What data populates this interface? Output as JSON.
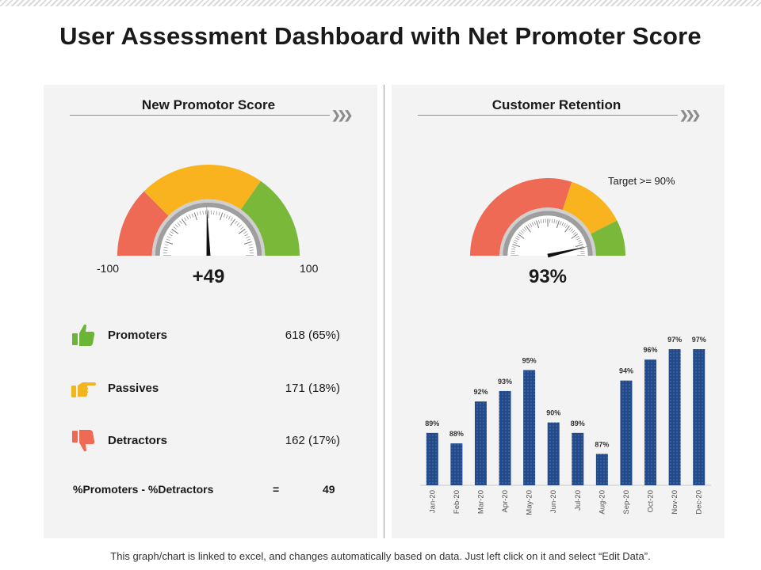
{
  "title": "User Assessment Dashboard with Net Promoter Score",
  "footnote": "This graph/chart is linked to excel, and changes automatically based on data. Just left click on it and select “Edit Data”.",
  "nps": {
    "panel_title": "New Promotor Score",
    "gauge_min_label": "-100",
    "gauge_max_label": "100",
    "score_label": "+49",
    "score": 49,
    "rows": [
      {
        "label": "Promoters",
        "value": "618 (65%)",
        "icon": "thumbs-up-icon",
        "color": "#6ab535"
      },
      {
        "label": "Passives",
        "value": "171 (18%)",
        "icon": "pointing-hand-icon",
        "color": "#f3b51c"
      },
      {
        "label": "Detractors",
        "value": "162 (17%)",
        "icon": "thumbs-down-icon",
        "color": "#ee6a55"
      }
    ],
    "formula_label": "%Promoters - %Detractors",
    "formula_equals": "=",
    "formula_result": "49"
  },
  "retention": {
    "panel_title": "Customer Retention",
    "target_label": "Target >= 90%",
    "value_label": "93%",
    "value": 93
  },
  "colors": {
    "red": "#ee6a55",
    "amber": "#f8b31e",
    "green": "#7ab839",
    "bar": "#234b8c"
  },
  "chart_data": [
    {
      "type": "gauge",
      "title": "New Promotor Score",
      "range": [
        -100,
        100
      ],
      "value": 49,
      "value_label": "+49"
    },
    {
      "type": "gauge",
      "title": "Customer Retention",
      "value": 93,
      "value_label": "93%",
      "annotation": "Target >= 90%"
    },
    {
      "type": "bar",
      "categories": [
        "Jan-20",
        "Feb-20",
        "Mar-20",
        "Apr-20",
        "May-20",
        "Jun-20",
        "Jul-20",
        "Aug-20",
        "Sep-20",
        "Oct-20",
        "Nov-20",
        "Dec-20"
      ],
      "values": [
        89,
        88,
        92,
        93,
        95,
        90,
        89,
        87,
        94,
        96,
        97,
        97
      ],
      "data_labels": [
        "89%",
        "88%",
        "92%",
        "93%",
        "95%",
        "90%",
        "89%",
        "87%",
        "94%",
        "96%",
        "97%",
        "97%"
      ],
      "ylim": [
        80,
        100
      ],
      "grid": false,
      "xlabel": "",
      "ylabel": ""
    }
  ]
}
